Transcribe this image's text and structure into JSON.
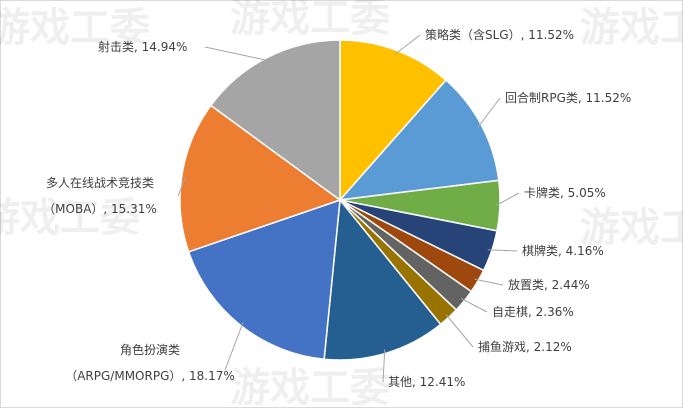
{
  "chart_data": {
    "type": "pie",
    "values": [
      11.52,
      11.52,
      5.05,
      4.16,
      2.44,
      2.36,
      2.12,
      12.41,
      18.17,
      15.31,
      14.94
    ],
    "value_labels": [
      "策略类（含SLG）, 11.52%",
      "回合制RPG类, 11.52%",
      "卡牌类, 5.05%",
      "棋牌类, 4.16%",
      "放置类, 2.44%",
      "自走棋, 2.36%",
      "捕鱼游戏, 2.12%",
      "其他, 12.41%",
      "角色扮演类\n（ARPG/MMORPG）, 18.17%",
      "多人在线战术竞技类\n（MOBA）, 15.31%",
      "射击类, 14.94%"
    ],
    "colors": [
      "#FFC000",
      "#5B9BD5",
      "#70AD47",
      "#264478",
      "#9E480E",
      "#636363",
      "#997300",
      "#255E91",
      "#4472C4",
      "#ED7D31",
      "#A5A5A5"
    ],
    "watermark": "游戏工委"
  }
}
